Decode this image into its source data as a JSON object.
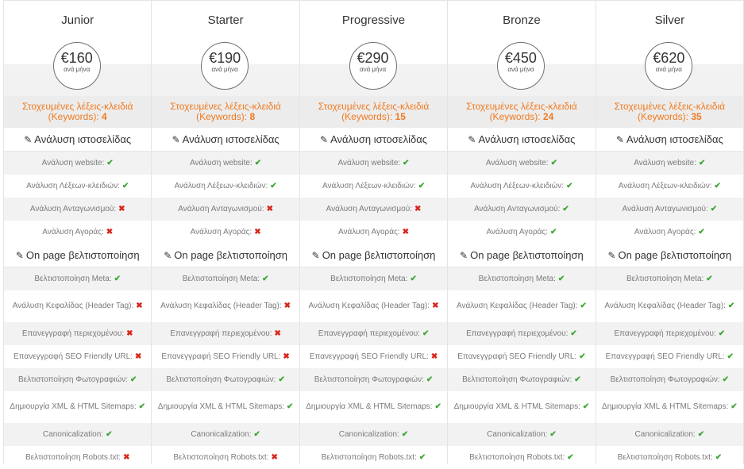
{
  "symbols": {
    "check": "✔",
    "cross": "✖",
    "edit": "✎"
  },
  "colors": {
    "accent": "#f07a1f",
    "ok": "#3aa832",
    "no": "#d9261c"
  },
  "plans": [
    {
      "name": "Junior",
      "price": "€160",
      "per": "ανά μήνα",
      "kw_label": "Στοχευμένες λέξεις-κλειδιά (Keywords):",
      "kw_count": "4",
      "sec1": "Ανάλυση ιστοσελίδας",
      "f1": "Ανάλυση website:",
      "f1s": "✔",
      "f2": "Ανάλυση Λέξεων-κλειδιών:",
      "f2s": "✔",
      "f3": "Ανάλυση Ανταγωνισμού:",
      "f3s": "✖",
      "f4": "Ανάλυση Αγοράς:",
      "f4s": "✖",
      "sec2": "On page βελτιστοποίηση",
      "f5": "Βελτιστοποίηση Meta:",
      "f5s": "✔",
      "f6": "Ανάλυση Κεφαλίδας (Header Tag):",
      "f6s": "✖",
      "f7": "Επανεγγραφή περιεχομένου:",
      "f7s": "✖",
      "f8": "Επανεγγραφή SEO Friendly URL:",
      "f8s": "✖",
      "f9": "Βελτιστοποίηση Φωτογραφιών:",
      "f9s": "✔",
      "f10": "Δημιουργία XML & HTML Sitemaps:",
      "f10s": "✔",
      "f11": "Canonicalization:",
      "f11s": "✔",
      "f12": "Βελτιστοποίηση Robots.txt:",
      "f12s": "✖"
    },
    {
      "name": "Starter",
      "price": "€190",
      "per": "ανά μήνα",
      "kw_label": "Στοχευμένες λέξεις-κλειδιά (Keywords):",
      "kw_count": "8",
      "sec1": "Ανάλυση ιστοσελίδας",
      "f1": "Ανάλυση website:",
      "f1s": "✔",
      "f2": "Ανάλυση Λέξεων-κλειδιών:",
      "f2s": "✔",
      "f3": "Ανάλυση Ανταγωνισμού:",
      "f3s": "✖",
      "f4": "Ανάλυση Αγοράς:",
      "f4s": "✖",
      "sec2": "On page βελτιστοποίηση",
      "f5": "Βελτιστοποίηση Meta:",
      "f5s": "✔",
      "f6": "Ανάλυση Κεφαλίδας (Header Tag):",
      "f6s": "✖",
      "f7": "Επανεγγραφή περιεχομένου:",
      "f7s": "✖",
      "f8": "Επανεγγραφή SEO Friendly URL:",
      "f8s": "✖",
      "f9": "Βελτιστοποίηση Φωτογραφιών:",
      "f9s": "✔",
      "f10": "Δημιουργία XML & HTML Sitemaps:",
      "f10s": "✔",
      "f11": "Canonicalization:",
      "f11s": "✔",
      "f12": "Βελτιστοποίηση Robots.txt:",
      "f12s": "✖"
    },
    {
      "name": "Progressive",
      "price": "€290",
      "per": "ανά μήνα",
      "kw_label": "Στοχευμένες λέξεις-κλειδιά (Keywords):",
      "kw_count": "15",
      "sec1": "Ανάλυση ιστοσελίδας",
      "f1": "Ανάλυση website:",
      "f1s": "✔",
      "f2": "Ανάλυση Λέξεων-κλειδιών:",
      "f2s": "✔",
      "f3": "Ανάλυση Ανταγωνισμού:",
      "f3s": "✖",
      "f4": "Ανάλυση Αγοράς:",
      "f4s": "✖",
      "sec2": "On page βελτιστοποίηση",
      "f5": "Βελτιστοποίηση Meta:",
      "f5s": "✔",
      "f6": "Ανάλυση Κεφαλίδας (Header Tag):",
      "f6s": "✖",
      "f7": "Επανεγγραφή περιεχομένου:",
      "f7s": "✔",
      "f8": "Επανεγγραφή SEO Friendly URL:",
      "f8s": "✖",
      "f9": "Βελτιστοποίηση Φωτογραφιών:",
      "f9s": "✔",
      "f10": "Δημιουργία XML & HTML Sitemaps:",
      "f10s": "✔",
      "f11": "Canonicalization:",
      "f11s": "✔",
      "f12": "Βελτιστοποίηση Robots.txt:",
      "f12s": "✔"
    },
    {
      "name": "Bronze",
      "price": "€450",
      "per": "ανά μήνα",
      "kw_label": "Στοχευμένες λέξεις-κλειδιά (Keywords):",
      "kw_count": "24",
      "sec1": "Ανάλυση ιστοσελίδας",
      "f1": "Ανάλυση website:",
      "f1s": "✔",
      "f2": "Ανάλυση Λέξεων-κλειδιών:",
      "f2s": "✔",
      "f3": "Ανάλυση Ανταγωνισμού:",
      "f3s": "✔",
      "f4": "Ανάλυση Αγοράς:",
      "f4s": "✔",
      "sec2": "On page βελτιστοποίηση",
      "f5": "Βελτιστοποίηση Meta:",
      "f5s": "✔",
      "f6": "Ανάλυση Κεφαλίδας (Header Tag):",
      "f6s": "✔",
      "f7": "Επανεγγραφή περιεχομένου:",
      "f7s": "✔",
      "f8": "Επανεγγραφή SEO Friendly URL:",
      "f8s": "✔",
      "f9": "Βελτιστοποίηση Φωτογραφιών:",
      "f9s": "✔",
      "f10": "Δημιουργία XML & HTML Sitemaps:",
      "f10s": "✔",
      "f11": "Canonicalization:",
      "f11s": "✔",
      "f12": "Βελτιστοποίηση Robots.txt:",
      "f12s": "✔"
    },
    {
      "name": "Silver",
      "price": "€620",
      "per": "ανά μήνα",
      "kw_label": "Στοχευμένες λέξεις-κλειδιά (Keywords):",
      "kw_count": "35",
      "sec1": "Ανάλυση ιστοσελίδας",
      "f1": "Ανάλυση website:",
      "f1s": "✔",
      "f2": "Ανάλυση Λέξεων-κλειδιών:",
      "f2s": "✔",
      "f3": "Ανάλυση Ανταγωνισμού:",
      "f3s": "✔",
      "f4": "Ανάλυση Αγοράς:",
      "f4s": "✔",
      "sec2": "On page βελτιστοποίηση",
      "f5": "Βελτιστοποίηση Meta:",
      "f5s": "✔",
      "f6": "Ανάλυση Κεφαλίδας (Header Tag):",
      "f6s": "✔",
      "f7": "Επανεγγραφή περιεχομένου:",
      "f7s": "✔",
      "f8": "Επανεγγραφή SEO Friendly URL:",
      "f8s": "✔",
      "f9": "Βελτιστοποίηση Φωτογραφιών:",
      "f9s": "✔",
      "f10": "Δημιουργία XML & HTML Sitemaps:",
      "f10s": "✔",
      "f11": "Canonicalization:",
      "f11s": "✔",
      "f12": "Βελτιστοποίηση Robots.txt:",
      "f12s": "✔"
    }
  ]
}
